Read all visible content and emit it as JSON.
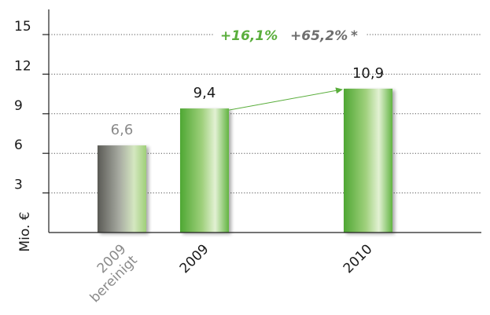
{
  "chart_data": {
    "type": "bar",
    "categories": [
      [
        "2009",
        "bereinigt"
      ],
      [
        "2009"
      ],
      [
        "2010"
      ]
    ],
    "values": [
      6.6,
      9.4,
      10.9
    ],
    "data_labels": [
      "6,6",
      "9,4",
      "10,9"
    ],
    "label_colors": [
      "#8a8a8a",
      "#1a1a1a",
      "#1a1a1a"
    ],
    "category_colors": [
      "#8a8a8a",
      "#1a1a1a",
      "#1a1a1a"
    ],
    "bar_styles": [
      "grey",
      "green",
      "green"
    ],
    "ylabel": "Mio. €",
    "yticks": [
      3,
      6,
      9,
      12,
      15
    ],
    "ylim": [
      0,
      16.5
    ],
    "grid": "dotted",
    "growth_annotations": [
      {
        "text": "+16,1%",
        "color": "#5aae3c"
      },
      {
        "text": "+65,2%",
        "color": "#6e6e6e"
      },
      {
        "text": "*",
        "color": "#6e6e6e"
      }
    ],
    "arrow": {
      "from_category": 1,
      "to_category": 2,
      "color": "#5aae3c"
    }
  }
}
